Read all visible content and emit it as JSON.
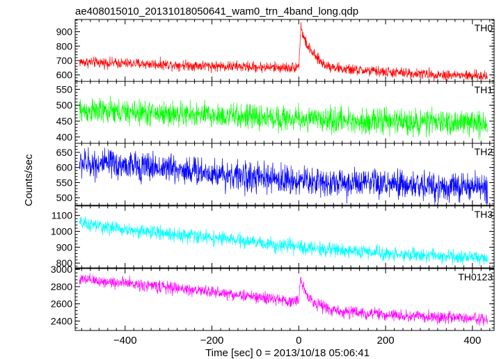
{
  "chart_data": {
    "type": "line",
    "title": "ae408015010_20131018050641_wam0_trn_4band_long.qdp",
    "xlabel": "Time [sec] 0 = 2013/10/18 05:06:41",
    "ylabel": "Counts/sec",
    "xlim": [
      -515,
      450
    ],
    "x_ticks": [
      -400,
      -200,
      0,
      200,
      400
    ],
    "x_tick_labels": [
      "−400",
      "−200",
      "0",
      "200",
      "400"
    ],
    "grid": false,
    "x_range": [
      -505,
      435
    ],
    "panels": [
      {
        "name": "TH0",
        "color": "#ff0000",
        "ylim": [
          555,
          985
        ],
        "y_ticks": [
          600,
          700,
          800,
          900
        ],
        "y_tick_labels": [
          "600",
          "700",
          "800",
          "900"
        ],
        "x": [
          -505,
          -450,
          -400,
          -300,
          -200,
          -100,
          -20,
          0,
          5,
          10,
          20,
          40,
          60,
          100,
          200,
          300,
          435
        ],
        "values": [
          690,
          685,
          680,
          672,
          662,
          655,
          650,
          660,
          940,
          870,
          800,
          720,
          670,
          640,
          620,
          605,
          590
        ],
        "noise": 32
      },
      {
        "name": "TH1",
        "color": "#00ff00",
        "ylim": [
          380,
          575
        ],
        "y_ticks": [
          400,
          450,
          500,
          550
        ],
        "y_tick_labels": [
          "400",
          "450",
          "500",
          "550"
        ],
        "x": [
          -505,
          -300,
          -100,
          100,
          300,
          435
        ],
        "values": [
          482,
          473,
          462,
          452,
          446,
          443
        ],
        "noise": 34
      },
      {
        "name": "TH2",
        "color": "#0000ff",
        "ylim": [
          475,
          680
        ],
        "y_ticks": [
          500,
          550,
          600,
          650
        ],
        "y_tick_labels": [
          "500",
          "550",
          "600",
          "650"
        ],
        "x": [
          -505,
          -300,
          -100,
          100,
          300,
          435
        ],
        "values": [
          615,
          598,
          565,
          548,
          538,
          532
        ],
        "noise": 42
      },
      {
        "name": "TH3",
        "color": "#00ffff",
        "ylim": [
          770,
          1160
        ],
        "y_ticks": [
          800,
          900,
          1000,
          1100
        ],
        "y_tick_labels": [
          "800",
          "900",
          "1000",
          "1100"
        ],
        "x": [
          -505,
          -400,
          -200,
          0,
          200,
          435
        ],
        "values": [
          1050,
          1010,
          960,
          900,
          860,
          830
        ],
        "noise": 38
      },
      {
        "name": "TH0123",
        "color": "#ff00ff",
        "ylim": [
          2290,
          3010
        ],
        "y_ticks": [
          2400,
          2600,
          2800,
          3000
        ],
        "y_tick_labels": [
          "2400",
          "2600",
          "2800",
          "3000"
        ],
        "x": [
          -505,
          -400,
          -200,
          -20,
          0,
          5,
          10,
          20,
          40,
          80,
          200,
          435
        ],
        "values": [
          2880,
          2840,
          2740,
          2630,
          2640,
          2900,
          2800,
          2700,
          2600,
          2520,
          2470,
          2420
        ],
        "noise": 60
      }
    ]
  }
}
